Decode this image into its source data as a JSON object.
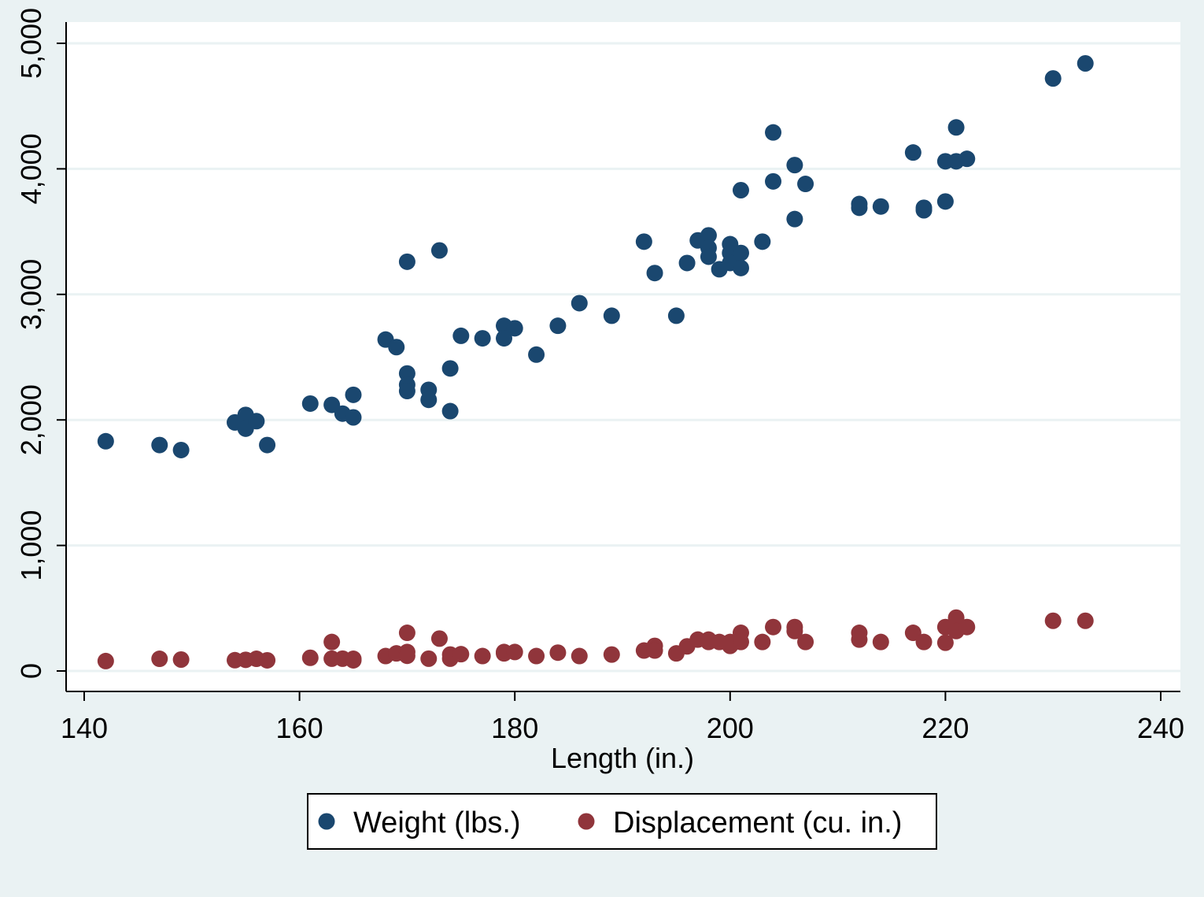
{
  "chart_data": {
    "type": "scatter",
    "title": "",
    "xlabel": "Length (in.)",
    "ylabel": "",
    "xlim": [
      140,
      240
    ],
    "ylim": [
      0,
      5000
    ],
    "x_ticks": [
      140,
      160,
      180,
      200,
      220,
      240
    ],
    "x_tick_labels": [
      "140",
      "160",
      "180",
      "200",
      "220",
      "240"
    ],
    "y_ticks": [
      0,
      1000,
      2000,
      3000,
      4000,
      5000
    ],
    "y_tick_labels": [
      "0",
      "1,000",
      "2,000",
      "3,000",
      "4,000",
      "5,000"
    ],
    "grid": "horizontal",
    "legend_position": "bottom",
    "series": [
      {
        "name": "Weight (lbs.)",
        "color": "#1a476f",
        "points": [
          [
            142,
            1830
          ],
          [
            147,
            1800
          ],
          [
            149,
            1760
          ],
          [
            154,
            1980
          ],
          [
            155,
            2040
          ],
          [
            155,
            1930
          ],
          [
            156,
            1990
          ],
          [
            157,
            1800
          ],
          [
            161,
            2130
          ],
          [
            163,
            2120
          ],
          [
            164,
            2050
          ],
          [
            165,
            2020
          ],
          [
            165,
            2200
          ],
          [
            168,
            2640
          ],
          [
            169,
            2580
          ],
          [
            170,
            2370
          ],
          [
            170,
            2280
          ],
          [
            170,
            2230
          ],
          [
            170,
            3260
          ],
          [
            172,
            2240
          ],
          [
            172,
            2160
          ],
          [
            173,
            3350
          ],
          [
            174,
            2410
          ],
          [
            174,
            2070
          ],
          [
            175,
            2670
          ],
          [
            177,
            2650
          ],
          [
            179,
            2750
          ],
          [
            179,
            2650
          ],
          [
            180,
            2730
          ],
          [
            182,
            2520
          ],
          [
            184,
            2750
          ],
          [
            186,
            2930
          ],
          [
            189,
            2830
          ],
          [
            192,
            3420
          ],
          [
            193,
            3170
          ],
          [
            195,
            2830
          ],
          [
            196,
            3250
          ],
          [
            197,
            3430
          ],
          [
            198,
            3470
          ],
          [
            198,
            3370
          ],
          [
            198,
            3300
          ],
          [
            199,
            3200
          ],
          [
            200,
            3400
          ],
          [
            200,
            3330
          ],
          [
            200,
            3250
          ],
          [
            201,
            3830
          ],
          [
            201,
            3330
          ],
          [
            201,
            3210
          ],
          [
            203,
            3420
          ],
          [
            204,
            4290
          ],
          [
            204,
            3900
          ],
          [
            206,
            4030
          ],
          [
            206,
            3600
          ],
          [
            207,
            3880
          ],
          [
            212,
            3720
          ],
          [
            212,
            3690
          ],
          [
            214,
            3700
          ],
          [
            217,
            4130
          ],
          [
            218,
            3690
          ],
          [
            218,
            3670
          ],
          [
            220,
            4060
          ],
          [
            220,
            3740
          ],
          [
            221,
            4330
          ],
          [
            221,
            4060
          ],
          [
            222,
            4080
          ],
          [
            230,
            4720
          ],
          [
            233,
            4840
          ]
        ]
      },
      {
        "name": "Displacement (cu. in.)",
        "color": "#90353b",
        "points": [
          [
            142,
            79
          ],
          [
            147,
            97
          ],
          [
            149,
            91
          ],
          [
            154,
            86
          ],
          [
            155,
            89
          ],
          [
            156,
            97
          ],
          [
            157,
            85
          ],
          [
            161,
            105
          ],
          [
            163,
            231
          ],
          [
            163,
            98
          ],
          [
            164,
            98
          ],
          [
            165,
            97
          ],
          [
            165,
            85
          ],
          [
            168,
            119
          ],
          [
            169,
            140
          ],
          [
            170,
            151
          ],
          [
            170,
            304
          ],
          [
            170,
            121
          ],
          [
            172,
            98
          ],
          [
            173,
            258
          ],
          [
            174,
            131
          ],
          [
            174,
            98
          ],
          [
            175,
            134
          ],
          [
            177,
            119
          ],
          [
            179,
            140
          ],
          [
            179,
            151
          ],
          [
            180,
            151
          ],
          [
            182,
            119
          ],
          [
            184,
            146
          ],
          [
            186,
            119
          ],
          [
            189,
            131
          ],
          [
            192,
            163
          ],
          [
            193,
            200
          ],
          [
            193,
            163
          ],
          [
            195,
            140
          ],
          [
            196,
            196
          ],
          [
            197,
            250
          ],
          [
            198,
            250
          ],
          [
            198,
            231
          ],
          [
            199,
            231
          ],
          [
            200,
            200
          ],
          [
            200,
            231
          ],
          [
            201,
            304
          ],
          [
            201,
            231
          ],
          [
            203,
            231
          ],
          [
            204,
            350
          ],
          [
            206,
            350
          ],
          [
            206,
            318
          ],
          [
            207,
            231
          ],
          [
            212,
            304
          ],
          [
            212,
            250
          ],
          [
            214,
            231
          ],
          [
            217,
            304
          ],
          [
            218,
            231
          ],
          [
            220,
            350
          ],
          [
            220,
            225
          ],
          [
            221,
            425
          ],
          [
            221,
            318
          ],
          [
            222,
            350
          ],
          [
            230,
            400
          ],
          [
            233,
            400
          ]
        ]
      }
    ]
  }
}
